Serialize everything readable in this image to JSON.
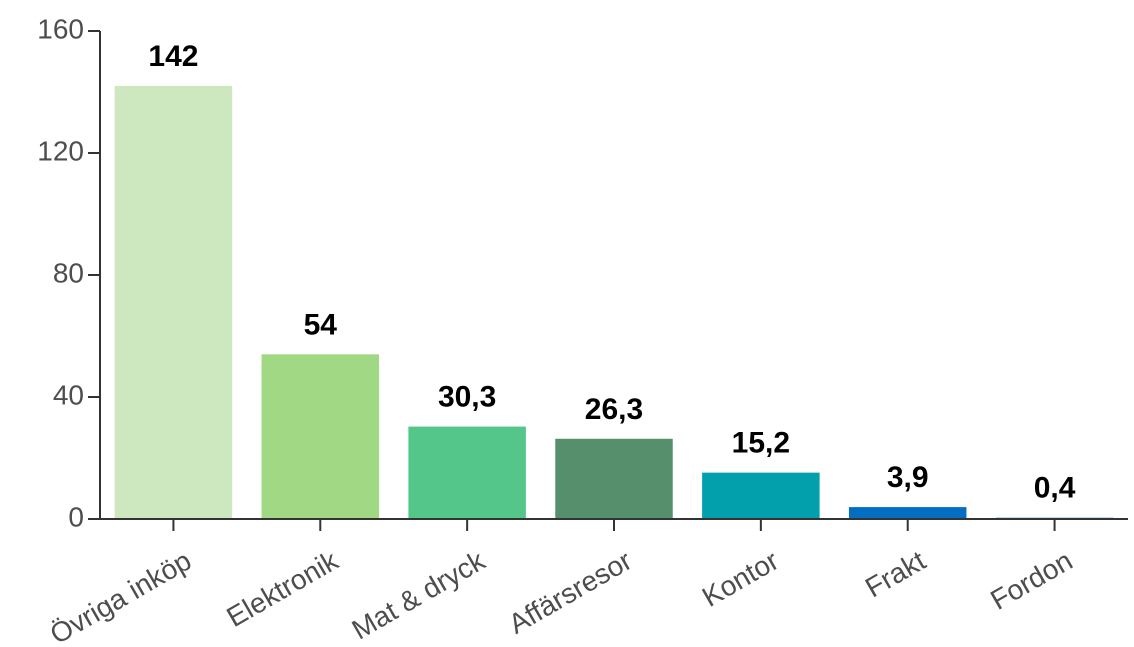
{
  "chart_data": {
    "type": "bar",
    "title": "",
    "xlabel": "",
    "ylabel": "",
    "categories": [
      "Övriga inköp",
      "Elektronik",
      "Mat & dryck",
      "Affärsresor",
      "Kontor",
      "Frakt",
      "Fordon"
    ],
    "values": [
      142,
      54,
      30.3,
      26.3,
      15.2,
      3.9,
      0.4
    ],
    "value_labels": [
      "142",
      "54",
      "30,3",
      "26,3",
      "15,2",
      "3,9",
      "0,4"
    ],
    "colors": [
      "#cde8bf",
      "#a1d884",
      "#55c689",
      "#568f6b",
      "#029fac",
      "#036ec2",
      "#79b4e8"
    ],
    "ylim": [
      0,
      160
    ],
    "yticks": [
      0,
      40,
      80,
      120,
      160
    ],
    "ytick_labels": [
      "0",
      "40",
      "80",
      "120",
      "160"
    ],
    "grid": false,
    "legend": "none"
  }
}
